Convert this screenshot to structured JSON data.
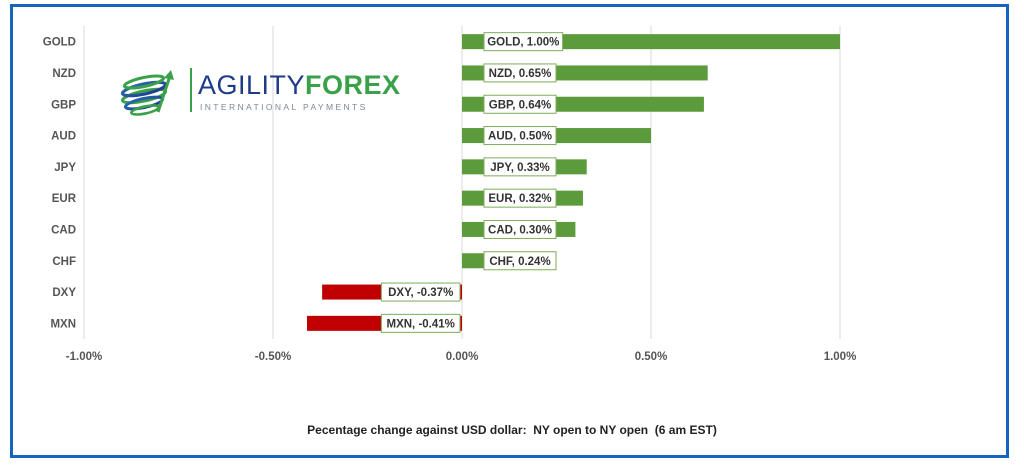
{
  "chart_data": {
    "type": "bar",
    "orientation": "horizontal",
    "categories": [
      "GOLD",
      "NZD",
      "GBP",
      "AUD",
      "JPY",
      "EUR",
      "CAD",
      "CHF",
      "DXY",
      "MXN"
    ],
    "values": [
      1.0,
      0.65,
      0.64,
      0.5,
      0.33,
      0.32,
      0.3,
      0.24,
      -0.37,
      -0.41
    ],
    "data_labels": [
      "GOLD, 1.00%",
      "NZD, 0.65%",
      "GBP, 0.64%",
      "AUD, 0.50%",
      "JPY, 0.33%",
      "EUR, 0.32%",
      "CAD, 0.30%",
      "CHF, 0.24%",
      "DXY, -0.37%",
      "MXN, -0.41%"
    ],
    "xlim": [
      -1.0,
      1.0
    ],
    "x_ticks": [
      -1.0,
      -0.5,
      0.0,
      0.5,
      1.0
    ],
    "x_tick_labels": [
      "-1.00%",
      "-0.50%",
      "0.00%",
      "0.50%",
      "1.00%"
    ],
    "xlabel": "Pecentage change against USD dollar:  NY open to NY open  (6 am EST)",
    "grid": "vertical",
    "positive_color": "#5b9b3c",
    "negative_color": "#c00000"
  },
  "logo": {
    "word_left": "AGILITY",
    "word_right": "FOREX",
    "subtitle": "INTERNATIONAL PAYMENTS",
    "accent_color": "#3aa14a",
    "brand_color": "#1e3a8a"
  },
  "frame_color": "#1565c0"
}
